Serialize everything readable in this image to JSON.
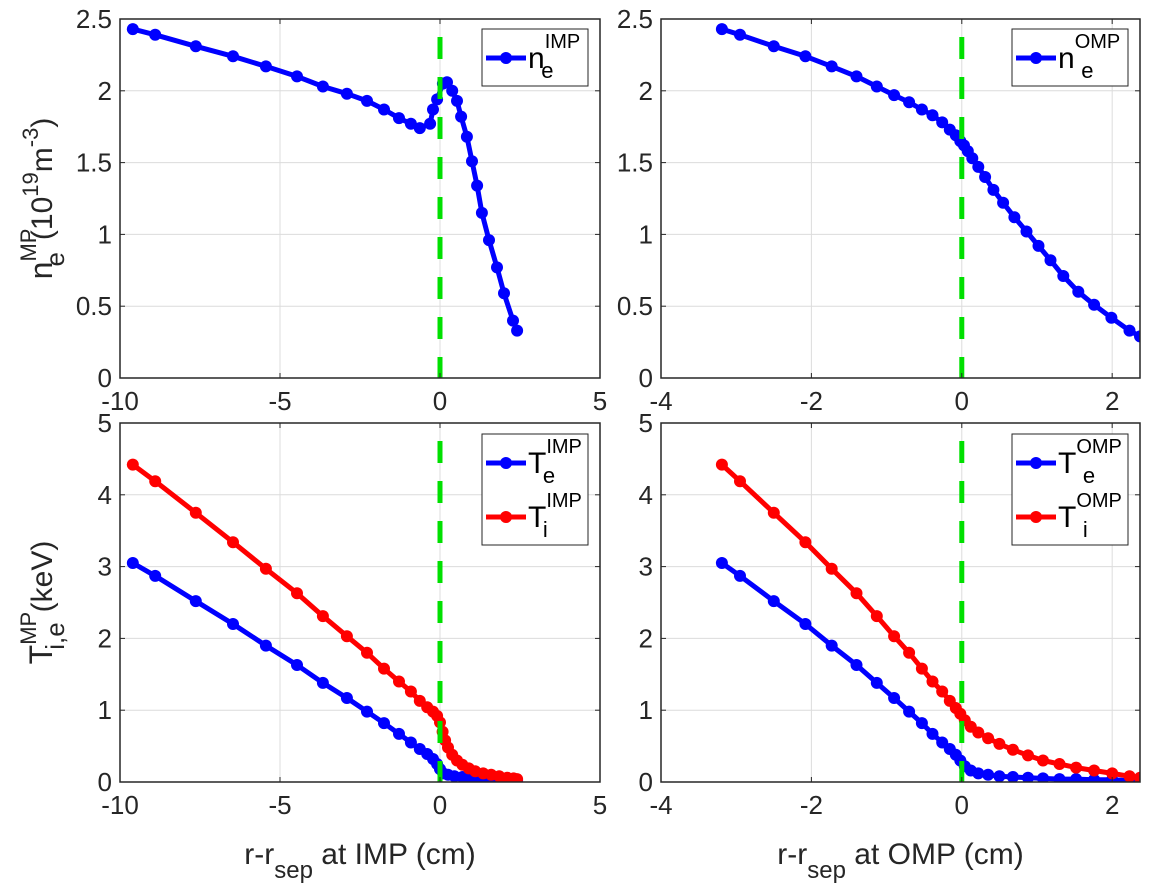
{
  "figure": {
    "separatrix_color": "#00e000",
    "grid_color": "#dcdcdc"
  },
  "chart_data": [
    {
      "id": "ne-imp",
      "type": "line",
      "position": "top-left",
      "title": "",
      "xlabel": "",
      "ylabel": "n_e^MP (10^19 m^-3)",
      "ylabel_parts": {
        "base": "n",
        "sub": "e",
        "sup": "MP",
        "rest": "(10",
        "exp": "19",
        "unit": "m",
        "unit_exp": "-3",
        "close": ")"
      },
      "xlim": [
        -10,
        5
      ],
      "ylim": [
        0,
        2.5
      ],
      "xticks": [
        -10,
        -5,
        0,
        5
      ],
      "xtick_labels": [
        "-10",
        "-5",
        "0",
        "5"
      ],
      "yticks": [
        0,
        0.5,
        1,
        1.5,
        2,
        2.5
      ],
      "ytick_labels": [
        "0",
        "0.5",
        "1",
        "1.5",
        "2",
        "2.5"
      ],
      "grid": true,
      "separatrix_x": 0,
      "legend": {
        "placement": "top-right"
      },
      "series": [
        {
          "name": "n_e^IMP",
          "legend_base": "n",
          "legend_sub": "e",
          "legend_sup": "IMP",
          "color": "#0000ff",
          "x": [
            -9.6,
            -8.9,
            -7.63,
            -6.47,
            -5.44,
            -4.47,
            -3.66,
            -2.91,
            -2.28,
            -1.75,
            -1.28,
            -0.91,
            -0.63,
            -0.31,
            -0.22,
            -0.09,
            0.09,
            0.22,
            0.38,
            0.53,
            0.66,
            0.84,
            1.0,
            1.16,
            1.31,
            1.53,
            1.78,
            2.0,
            2.28,
            2.41
          ],
          "y": [
            2.43,
            2.39,
            2.31,
            2.24,
            2.17,
            2.1,
            2.03,
            1.98,
            1.93,
            1.87,
            1.81,
            1.77,
            1.74,
            1.77,
            1.87,
            1.94,
            2.05,
            2.06,
            2.0,
            1.93,
            1.82,
            1.68,
            1.51,
            1.34,
            1.15,
            0.96,
            0.77,
            0.59,
            0.4,
            0.33
          ]
        }
      ]
    },
    {
      "id": "ne-omp",
      "type": "line",
      "position": "top-right",
      "title": "",
      "xlabel": "",
      "ylabel": "",
      "xlim": [
        -4,
        2.37
      ],
      "ylim": [
        0,
        2.5
      ],
      "xticks": [
        -4,
        -2,
        0,
        2
      ],
      "xtick_labels": [
        "-4",
        "-2",
        "0",
        "2"
      ],
      "yticks": [
        0,
        0.5,
        1,
        1.5,
        2,
        2.5
      ],
      "ytick_labels": [
        "0",
        "0.5",
        "1",
        "1.5",
        "2",
        "2.5"
      ],
      "grid": true,
      "separatrix_x": 0,
      "legend": {
        "placement": "top-right"
      },
      "series": [
        {
          "name": "n_e^OMP",
          "legend_base": "n",
          "legend_sub": "e",
          "legend_sup": "OMP",
          "color": "#0000ff",
          "x": [
            -3.19,
            -2.95,
            -2.5,
            -2.08,
            -1.73,
            -1.4,
            -1.13,
            -0.9,
            -0.7,
            -0.53,
            -0.39,
            -0.26,
            -0.16,
            -0.08,
            -0.02,
            0.03,
            0.08,
            0.14,
            0.22,
            0.31,
            0.42,
            0.55,
            0.7,
            0.86,
            1.02,
            1.18,
            1.35,
            1.55,
            1.76,
            1.99,
            2.23,
            2.37
          ],
          "y": [
            2.43,
            2.39,
            2.31,
            2.24,
            2.17,
            2.1,
            2.03,
            1.97,
            1.92,
            1.87,
            1.83,
            1.78,
            1.73,
            1.69,
            1.65,
            1.62,
            1.58,
            1.53,
            1.47,
            1.4,
            1.31,
            1.22,
            1.12,
            1.02,
            0.92,
            0.82,
            0.71,
            0.6,
            0.51,
            0.42,
            0.33,
            0.29
          ]
        }
      ]
    },
    {
      "id": "t-imp",
      "type": "line",
      "position": "bottom-left",
      "title": "",
      "xlabel": "r-r_sep at IMP (cm)",
      "xlabel_parts": {
        "pre": "r-r",
        "sub": "sep",
        "post": " at IMP (cm)"
      },
      "ylabel": "T_i,e^MP (keV)",
      "ylabel_parts": {
        "base": "T",
        "sub": "i,e",
        "sup": "MP",
        "rest": "(keV)"
      },
      "xlim": [
        -10,
        5
      ],
      "ylim": [
        0,
        5
      ],
      "xticks": [
        -10,
        -5,
        0,
        5
      ],
      "xtick_labels": [
        "-10",
        "-5",
        "0",
        "5"
      ],
      "yticks": [
        0,
        1,
        2,
        3,
        4,
        5
      ],
      "ytick_labels": [
        "0",
        "1",
        "2",
        "3",
        "4",
        "5"
      ],
      "grid": true,
      "separatrix_x": 0,
      "legend": {
        "placement": "top-right"
      },
      "series": [
        {
          "name": "T_e^IMP",
          "legend_base": "T",
          "legend_sub": "e",
          "legend_sup": "IMP",
          "color": "#0000ff",
          "x": [
            -9.6,
            -8.9,
            -7.63,
            -6.47,
            -5.44,
            -4.47,
            -3.66,
            -2.91,
            -2.28,
            -1.75,
            -1.28,
            -0.91,
            -0.63,
            -0.4,
            -0.22,
            -0.09,
            0.0,
            0.1,
            0.25,
            0.45,
            0.7,
            0.95,
            1.2,
            1.45,
            1.7,
            1.95,
            2.2,
            2.41
          ],
          "y": [
            3.05,
            2.87,
            2.52,
            2.2,
            1.9,
            1.63,
            1.38,
            1.17,
            0.98,
            0.82,
            0.67,
            0.55,
            0.46,
            0.39,
            0.32,
            0.25,
            0.18,
            0.12,
            0.1,
            0.08,
            0.07,
            0.06,
            0.05,
            0.04,
            0.03,
            0.02,
            0.02,
            0.02
          ]
        },
        {
          "name": "T_i^IMP",
          "legend_base": "T",
          "legend_sub": "i",
          "legend_sup": "IMP",
          "color": "#ff0000",
          "x": [
            -9.6,
            -8.9,
            -7.63,
            -6.47,
            -5.44,
            -4.47,
            -3.66,
            -2.91,
            -2.28,
            -1.75,
            -1.28,
            -0.91,
            -0.63,
            -0.4,
            -0.22,
            -0.09,
            0.0,
            0.08,
            0.16,
            0.25,
            0.38,
            0.53,
            0.7,
            0.9,
            1.1,
            1.35,
            1.6,
            1.85,
            2.1,
            2.3,
            2.41
          ],
          "y": [
            4.42,
            4.19,
            3.75,
            3.34,
            2.97,
            2.63,
            2.31,
            2.03,
            1.8,
            1.58,
            1.4,
            1.26,
            1.13,
            1.04,
            0.98,
            0.92,
            0.83,
            0.7,
            0.58,
            0.48,
            0.38,
            0.3,
            0.24,
            0.19,
            0.15,
            0.12,
            0.1,
            0.08,
            0.06,
            0.05,
            0.04
          ]
        }
      ]
    },
    {
      "id": "t-omp",
      "type": "line",
      "position": "bottom-right",
      "title": "",
      "xlabel": "r-r_sep at OMP (cm)",
      "xlabel_parts": {
        "pre": "r-r",
        "sub": "sep",
        "post": " at OMP (cm)"
      },
      "ylabel": "",
      "xlim": [
        -4,
        2.37
      ],
      "ylim": [
        0,
        5
      ],
      "xticks": [
        -4,
        -2,
        0,
        2
      ],
      "xtick_labels": [
        "-4",
        "-2",
        "0",
        "2"
      ],
      "yticks": [
        0,
        1,
        2,
        3,
        4,
        5
      ],
      "ytick_labels": [
        "0",
        "1",
        "2",
        "3",
        "4",
        "5"
      ],
      "grid": true,
      "separatrix_x": 0,
      "legend": {
        "placement": "top-right"
      },
      "series": [
        {
          "name": "T_e^OMP",
          "legend_base": "T",
          "legend_sub": "e",
          "legend_sup": "OMP",
          "color": "#0000ff",
          "x": [
            -3.19,
            -2.95,
            -2.5,
            -2.08,
            -1.73,
            -1.4,
            -1.13,
            -0.9,
            -0.7,
            -0.53,
            -0.39,
            -0.26,
            -0.16,
            -0.08,
            -0.02,
            0.04,
            0.12,
            0.22,
            0.35,
            0.5,
            0.68,
            0.88,
            1.08,
            1.3,
            1.52,
            1.76,
            2.0,
            2.23,
            2.37
          ],
          "y": [
            3.05,
            2.87,
            2.52,
            2.2,
            1.9,
            1.63,
            1.38,
            1.17,
            0.98,
            0.82,
            0.67,
            0.55,
            0.46,
            0.38,
            0.3,
            0.22,
            0.16,
            0.12,
            0.1,
            0.08,
            0.07,
            0.06,
            0.05,
            0.04,
            0.04,
            0.03,
            0.03,
            0.02,
            0.02
          ]
        },
        {
          "name": "T_i^OMP",
          "legend_base": "T",
          "legend_sub": "i",
          "legend_sup": "OMP",
          "color": "#ff0000",
          "x": [
            -3.19,
            -2.95,
            -2.5,
            -2.08,
            -1.73,
            -1.4,
            -1.13,
            -0.9,
            -0.7,
            -0.53,
            -0.39,
            -0.26,
            -0.16,
            -0.08,
            -0.02,
            0.04,
            0.12,
            0.22,
            0.35,
            0.5,
            0.68,
            0.88,
            1.08,
            1.3,
            1.52,
            1.76,
            2.0,
            2.23,
            2.37
          ],
          "y": [
            4.42,
            4.19,
            3.75,
            3.34,
            2.97,
            2.63,
            2.31,
            2.03,
            1.8,
            1.58,
            1.4,
            1.26,
            1.13,
            1.03,
            0.95,
            0.86,
            0.77,
            0.69,
            0.61,
            0.53,
            0.45,
            0.37,
            0.3,
            0.25,
            0.2,
            0.16,
            0.12,
            0.08,
            0.06
          ]
        }
      ]
    }
  ]
}
